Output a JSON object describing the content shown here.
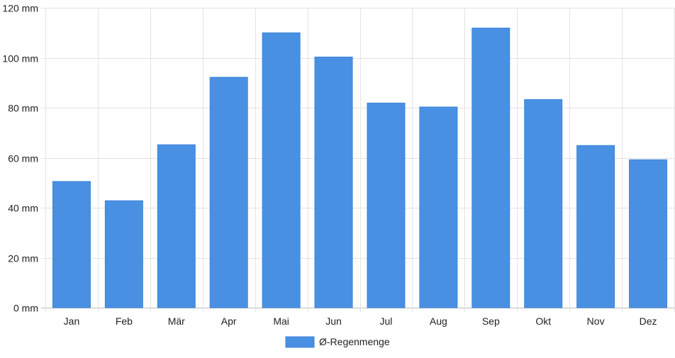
{
  "chart_data": {
    "type": "bar",
    "categories": [
      "Jan",
      "Feb",
      "Mär",
      "Apr",
      "Mai",
      "Jun",
      "Jul",
      "Aug",
      "Sep",
      "Okt",
      "Nov",
      "Dez"
    ],
    "series": [
      {
        "name": "Ø-Regenmenge",
        "values": [
          50.5,
          42.8,
          65.2,
          92.2,
          110.0,
          100.3,
          81.9,
          80.3,
          111.9,
          83.3,
          64.9,
          59.2
        ],
        "color": "#4a90e2"
      }
    ],
    "y_ticks": [
      "0 mm",
      "20 mm",
      "40 mm",
      "60 mm",
      "80 mm",
      "100 mm",
      "120 mm"
    ],
    "ylim": [
      0,
      120
    ],
    "unit": "mm",
    "grid": true,
    "legend_position": "bottom-center"
  }
}
